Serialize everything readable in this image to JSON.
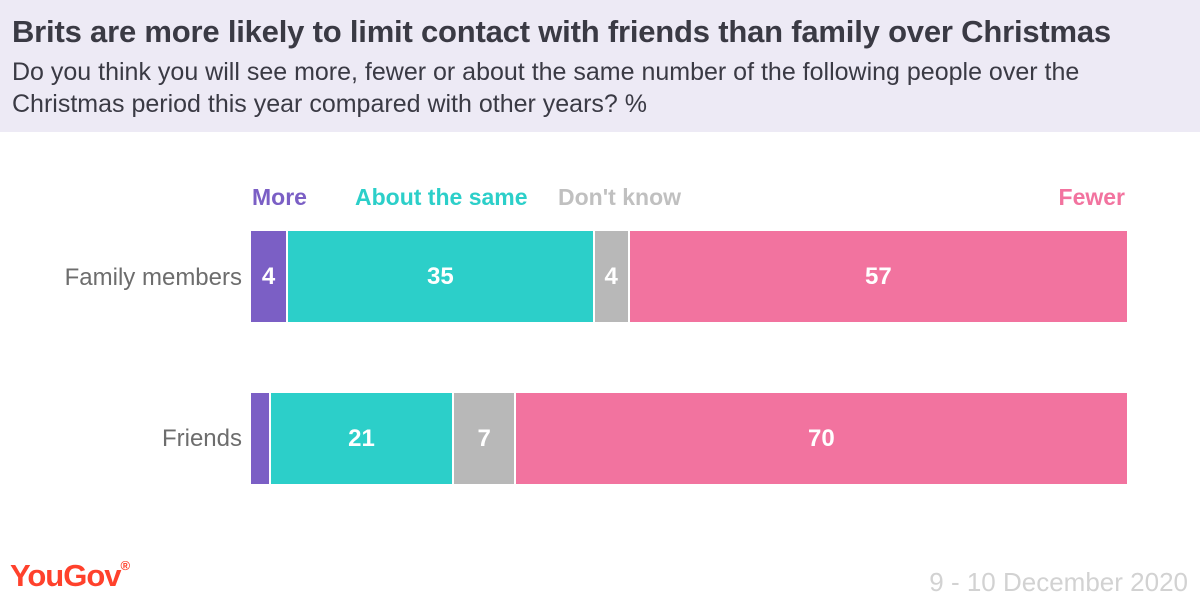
{
  "header": {
    "title": "Brits are more likely to limit contact with friends than family over Christmas",
    "subtitle": "Do you think you will see more, fewer or about the same number of the following people over the Christmas period this year compared with other years? %"
  },
  "colors": {
    "more": "#7b5fc5",
    "same": "#2ccfc9",
    "dont_know": "#b8b8b8",
    "fewer": "#f2739f"
  },
  "chart_data": {
    "type": "bar",
    "orientation": "horizontal",
    "stacked": true,
    "title": "Brits are more likely to limit contact with friends than family over Christmas",
    "categories": [
      "Family members",
      "Friends"
    ],
    "series": [
      {
        "name": "More",
        "color": "#7b5fc5",
        "values": [
          4,
          2
        ],
        "labels": [
          "4",
          ""
        ]
      },
      {
        "name": "About the same",
        "color": "#2ccfc9",
        "values": [
          35,
          21
        ],
        "labels": [
          "35",
          "21"
        ]
      },
      {
        "name": "Don't know",
        "color": "#b8b8b8",
        "values": [
          4,
          7
        ],
        "labels": [
          "4",
          "7"
        ]
      },
      {
        "name": "Fewer",
        "color": "#f2739f",
        "values": [
          57,
          70
        ],
        "labels": [
          "57",
          "70"
        ]
      }
    ],
    "legend_position": "top",
    "grid": false
  },
  "footer": {
    "logo_text": "YouGov",
    "logo_mark": "®",
    "date": "9 - 10 December 2020"
  }
}
